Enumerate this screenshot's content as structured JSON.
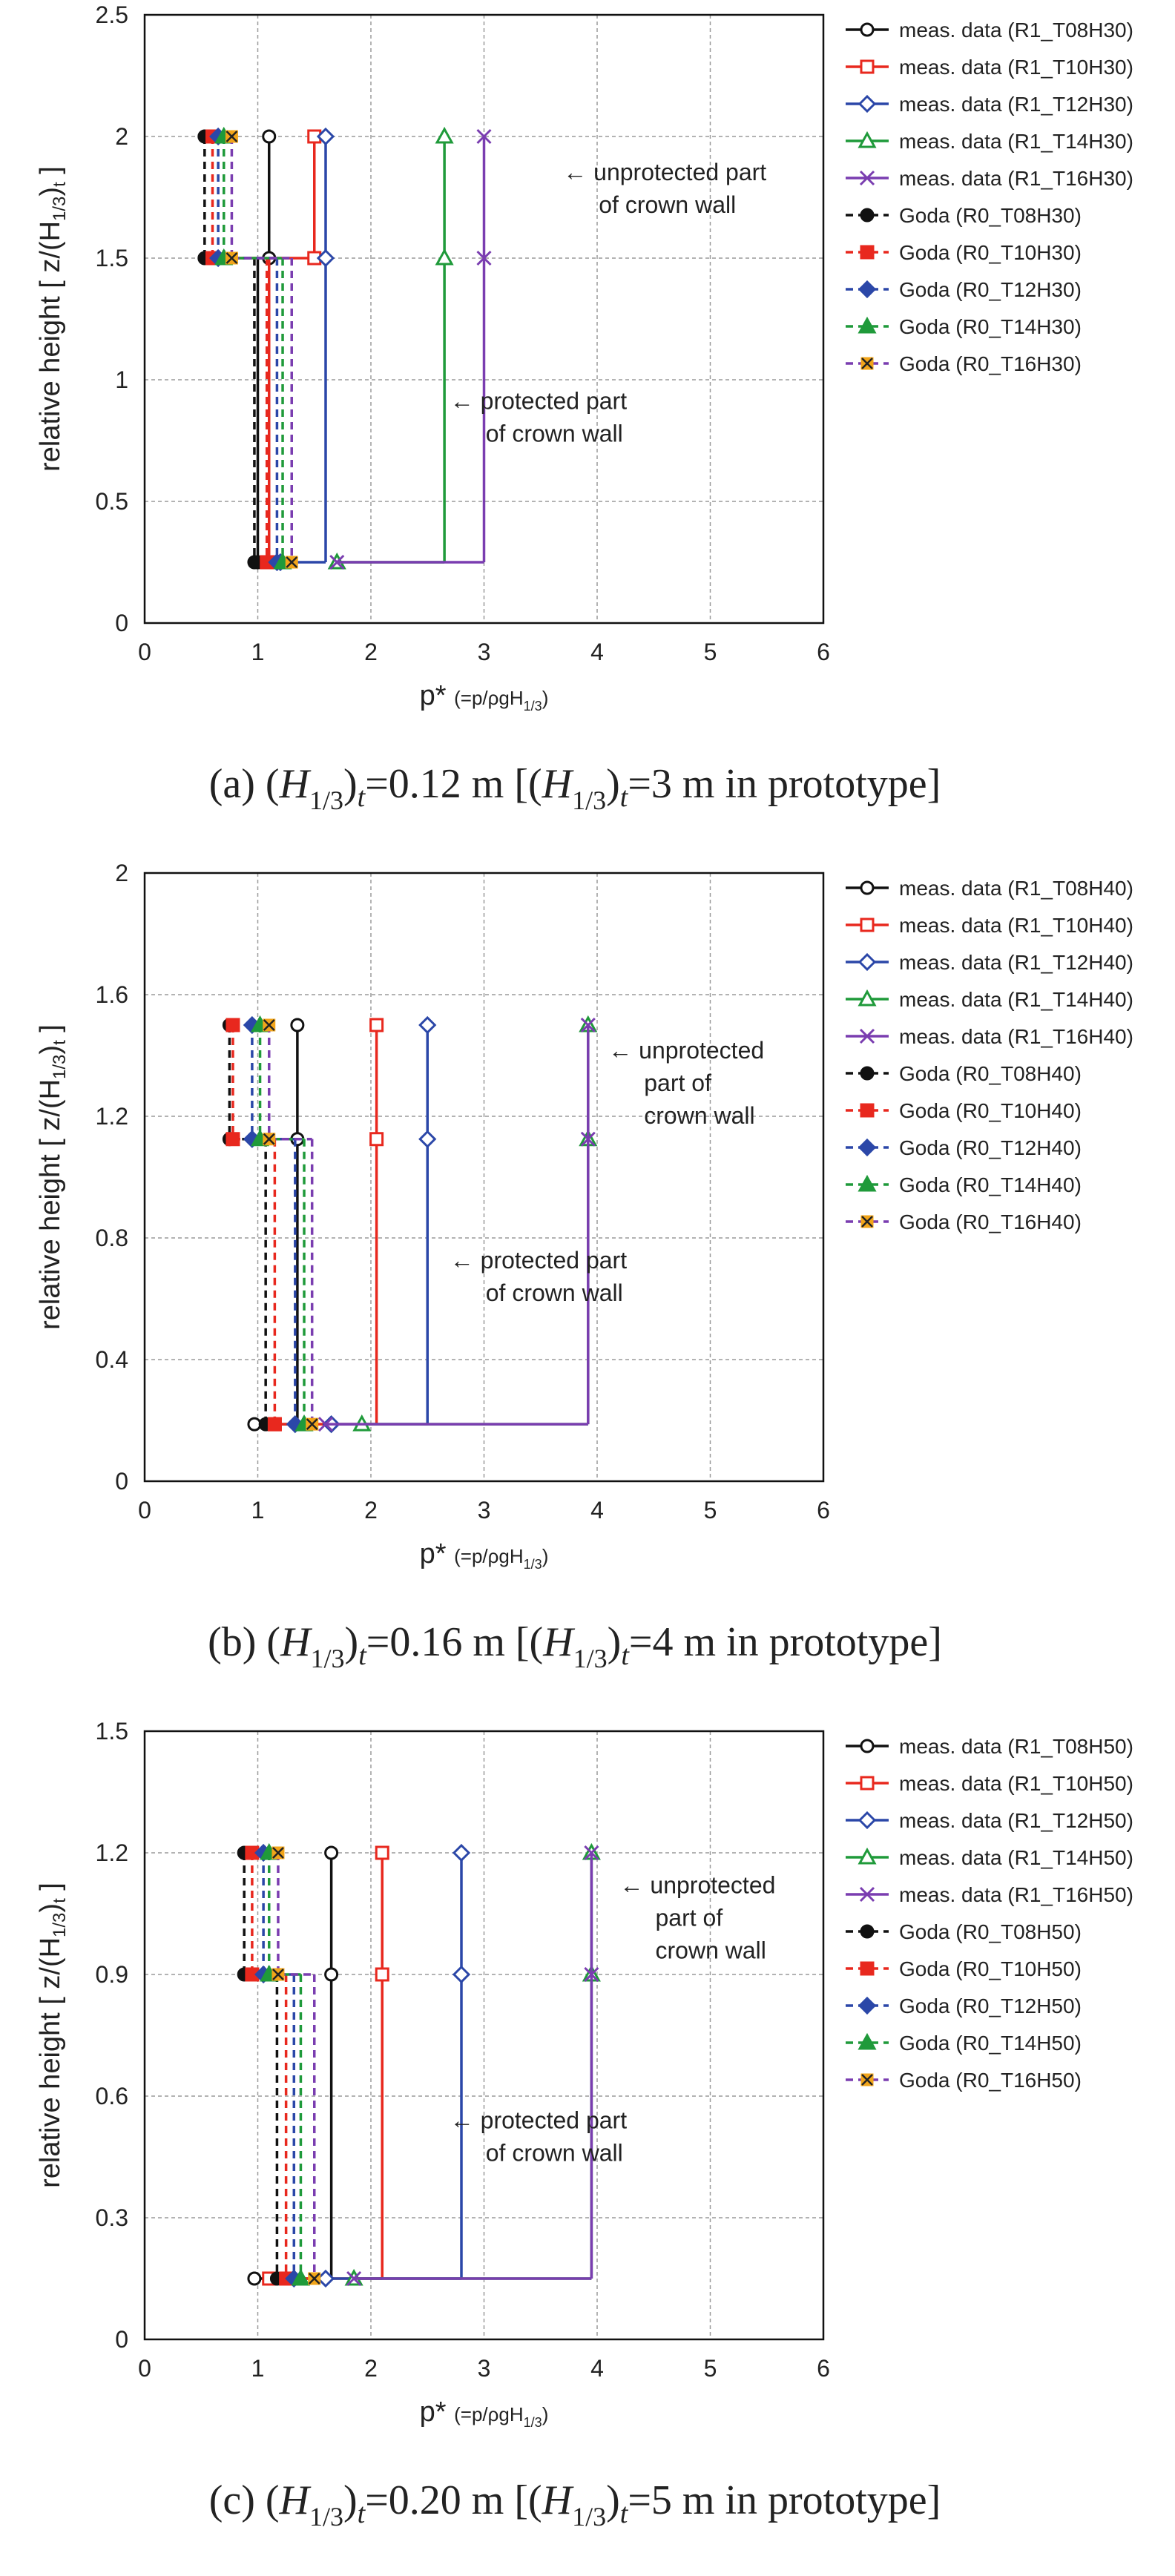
{
  "colors": {
    "T08": "#111111",
    "T10": "#e8281e",
    "T12": "#2b47a8",
    "T14": "#1f9a3a",
    "T16": "#7a3db0",
    "T16_goda_fill": "#f2a51a",
    "grid": "#9a9a9a",
    "frame": "#111111"
  },
  "chart_data": [
    {
      "type": "line",
      "caption": "(a) (H1/3)t=0.12 m [(H1/3)t=3 m in prototype]",
      "xlabel": "p* (=p/ρgH1/3)",
      "ylabel": "relative height [ z/(H1/3)t ]",
      "xlim": [
        0,
        6
      ],
      "ylim": [
        0,
        2.5
      ],
      "xticks": [
        "0",
        "1",
        "2",
        "3",
        "4",
        "5",
        "6"
      ],
      "yticks": [
        "0",
        "0.5",
        "1",
        "1.5",
        "2",
        "2.5"
      ],
      "grid": true,
      "legend_position": "right",
      "levels": {
        "top": 2.0,
        "mid": 1.5,
        "bottom": 0.25
      },
      "annotations": [
        {
          "lines": [
            "← unprotected part",
            "of crown wall"
          ],
          "x": 3.7,
          "y": 1.82
        },
        {
          "lines": [
            "← protected part",
            "of crown wall"
          ],
          "x": 2.7,
          "y": 0.88
        }
      ],
      "series": [
        {
          "name": "meas. data (R1_T08H30)",
          "color_key": "T08",
          "kind": "meas",
          "marker": "circle",
          "top": 1.1,
          "mid": 1.0,
          "bottom": 1.0
        },
        {
          "name": "meas. data (R1_T10H30)",
          "color_key": "T10",
          "kind": "meas",
          "marker": "square",
          "top": 1.5,
          "mid": 1.1,
          "bottom": 1.1
        },
        {
          "name": "meas. data (R1_T12H30)",
          "color_key": "T12",
          "kind": "meas",
          "marker": "diamond",
          "top": 1.6,
          "mid": 1.6,
          "bottom": 1.2
        },
        {
          "name": "meas. data (R1_T14H30)",
          "color_key": "T14",
          "kind": "meas",
          "marker": "triangle",
          "top": 2.65,
          "mid": 2.65,
          "bottom": 1.7
        },
        {
          "name": "meas. data (R1_T16H30)",
          "color_key": "T16",
          "kind": "meas",
          "marker": "x",
          "top": 3.0,
          "mid": 3.0,
          "bottom": 1.7
        },
        {
          "name": "Goda (R0_T08H30)",
          "color_key": "T08",
          "kind": "goda",
          "marker": "circle",
          "top": 0.53,
          "mid": 0.97,
          "bottom": 0.97
        },
        {
          "name": "Goda (R0_T10H30)",
          "color_key": "T10",
          "kind": "goda",
          "marker": "square",
          "top": 0.6,
          "mid": 1.08,
          "bottom": 1.08
        },
        {
          "name": "Goda (R0_T12H30)",
          "color_key": "T12",
          "kind": "goda",
          "marker": "diamond",
          "top": 0.65,
          "mid": 1.17,
          "bottom": 1.17
        },
        {
          "name": "Goda (R0_T14H30)",
          "color_key": "T14",
          "kind": "goda",
          "marker": "triangle",
          "top": 0.7,
          "mid": 1.22,
          "bottom": 1.22
        },
        {
          "name": "Goda (R0_T16H30)",
          "color_key": "T16",
          "kind": "goda",
          "marker": "xfill",
          "top": 0.77,
          "mid": 1.3,
          "bottom": 1.3
        }
      ]
    },
    {
      "type": "line",
      "caption": "(b) (H1/3)t=0.16 m [(H1/3)t=4 m in prototype]",
      "xlabel": "p* (=p/ρgH1/3)",
      "ylabel": "relative height [ z/(H1/3)t ]",
      "xlim": [
        0,
        6
      ],
      "ylim": [
        0,
        2
      ],
      "xticks": [
        "0",
        "1",
        "2",
        "3",
        "4",
        "5",
        "6"
      ],
      "yticks": [
        "0",
        "0.4",
        "0.8",
        "1.2",
        "1.6",
        "2"
      ],
      "grid": true,
      "legend_position": "right",
      "levels": {
        "top": 1.5,
        "mid": 1.125,
        "bottom": 0.1875
      },
      "annotations": [
        {
          "lines": [
            "← unprotected",
            "part of",
            "crown wall"
          ],
          "x": 4.1,
          "y": 1.39
        },
        {
          "lines": [
            "← protected part",
            "of crown wall"
          ],
          "x": 2.7,
          "y": 0.7
        }
      ],
      "series": [
        {
          "name": "meas. data (R1_T08H40)",
          "color_key": "T08",
          "kind": "meas",
          "marker": "circle",
          "top": 1.35,
          "mid": 1.35,
          "bottom": 0.97
        },
        {
          "name": "meas. data (R1_T10H40)",
          "color_key": "T10",
          "kind": "meas",
          "marker": "square",
          "top": 2.05,
          "mid": 2.05,
          "bottom": 1.15
        },
        {
          "name": "meas. data (R1_T12H40)",
          "color_key": "T12",
          "kind": "meas",
          "marker": "diamond",
          "top": 2.5,
          "mid": 2.5,
          "bottom": 1.65
        },
        {
          "name": "meas. data (R1_T14H40)",
          "color_key": "T14",
          "kind": "meas",
          "marker": "triangle",
          "top": 3.92,
          "mid": 3.92,
          "bottom": 1.92
        },
        {
          "name": "meas. data (R1_T16H40)",
          "color_key": "T16",
          "kind": "meas",
          "marker": "x",
          "top": 3.92,
          "mid": 3.92,
          "bottom": 1.6
        },
        {
          "name": "Goda (R0_T08H40)",
          "color_key": "T08",
          "kind": "goda",
          "marker": "circle",
          "top": 0.75,
          "mid": 1.07,
          "bottom": 1.07
        },
        {
          "name": "Goda (R0_T10H40)",
          "color_key": "T10",
          "kind": "goda",
          "marker": "square",
          "top": 0.78,
          "mid": 1.15,
          "bottom": 1.15
        },
        {
          "name": "Goda (R0_T12H40)",
          "color_key": "T12",
          "kind": "goda",
          "marker": "diamond",
          "top": 0.95,
          "mid": 1.33,
          "bottom": 1.33
        },
        {
          "name": "Goda (R0_T14H40)",
          "color_key": "T14",
          "kind": "goda",
          "marker": "triangle",
          "top": 1.02,
          "mid": 1.41,
          "bottom": 1.41
        },
        {
          "name": "Goda (R0_T16H40)",
          "color_key": "T16",
          "kind": "goda",
          "marker": "xfill",
          "top": 1.1,
          "mid": 1.48,
          "bottom": 1.48
        }
      ]
    },
    {
      "type": "line",
      "caption": "(c) (H1/3)t=0.20 m [(H1/3)t=5 m in prototype]",
      "xlabel": "p* (=p/ρgH1/3)",
      "ylabel": "relative height [ z/(H1/3)t ]",
      "xlim": [
        0,
        6
      ],
      "ylim": [
        0,
        1.5
      ],
      "xticks": [
        "0",
        "1",
        "2",
        "3",
        "4",
        "5",
        "6"
      ],
      "yticks": [
        "0",
        "0.3",
        "0.6",
        "0.9",
        "1.2",
        "1.5"
      ],
      "grid": true,
      "legend_position": "right",
      "levels": {
        "top": 1.2,
        "mid": 0.9,
        "bottom": 0.15
      },
      "annotations": [
        {
          "lines": [
            "← unprotected",
            "part of",
            "crown wall"
          ],
          "x": 4.2,
          "y": 1.1
        },
        {
          "lines": [
            "← protected part",
            "of crown wall"
          ],
          "x": 2.7,
          "y": 0.52
        }
      ],
      "series": [
        {
          "name": "meas. data (R1_T08H50)",
          "color_key": "T08",
          "kind": "meas",
          "marker": "circle",
          "top": 1.65,
          "mid": 1.65,
          "bottom": 0.97
        },
        {
          "name": "meas. data (R1_T10H50)",
          "color_key": "T10",
          "kind": "meas",
          "marker": "square",
          "top": 2.1,
          "mid": 2.1,
          "bottom": 1.1
        },
        {
          "name": "meas. data (R1_T12H50)",
          "color_key": "T12",
          "kind": "meas",
          "marker": "diamond",
          "top": 2.8,
          "mid": 2.8,
          "bottom": 1.6
        },
        {
          "name": "meas. data (R1_T14H50)",
          "color_key": "T14",
          "kind": "meas",
          "marker": "triangle",
          "top": 3.95,
          "mid": 3.95,
          "bottom": 1.85
        },
        {
          "name": "meas. data (R1_T16H50)",
          "color_key": "T16",
          "kind": "meas",
          "marker": "x",
          "top": 3.95,
          "mid": 3.95,
          "bottom": 1.85
        },
        {
          "name": "Goda (R0_T08H50)",
          "color_key": "T08",
          "kind": "goda",
          "marker": "circle",
          "top": 0.88,
          "mid": 1.17,
          "bottom": 1.17
        },
        {
          "name": "Goda (R0_T10H50)",
          "color_key": "T10",
          "kind": "goda",
          "marker": "square",
          "top": 0.95,
          "mid": 1.25,
          "bottom": 1.25
        },
        {
          "name": "Goda (R0_T12H50)",
          "color_key": "T12",
          "kind": "goda",
          "marker": "diamond",
          "top": 1.05,
          "mid": 1.32,
          "bottom": 1.32
        },
        {
          "name": "Goda (R0_T14H50)",
          "color_key": "T14",
          "kind": "goda",
          "marker": "triangle",
          "top": 1.1,
          "mid": 1.38,
          "bottom": 1.38
        },
        {
          "name": "Goda (R0_T16H50)",
          "color_key": "T16",
          "kind": "goda",
          "marker": "xfill",
          "top": 1.18,
          "mid": 1.5,
          "bottom": 1.5
        }
      ]
    }
  ]
}
